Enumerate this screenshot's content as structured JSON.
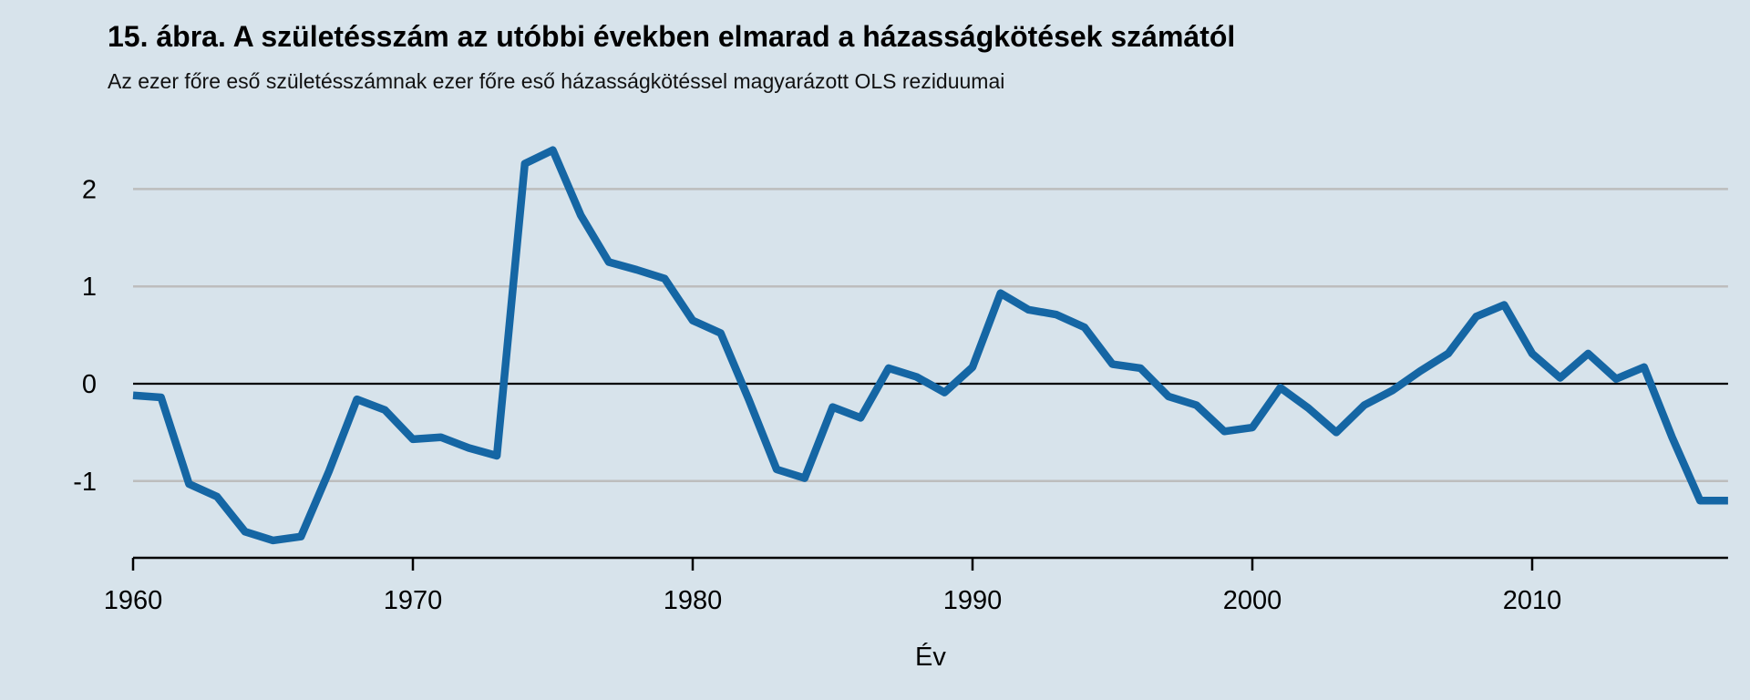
{
  "title": "15. ábra. A születésszám az utóbbi években elmarad a házasságkötések számától",
  "subtitle": "Az ezer főre eső születésszámnak ezer főre eső házasságkötéssel magyarázott OLS reziduumai",
  "chart_data": {
    "type": "line",
    "title": "15. ábra. A születésszám az utóbbi években elmarad a házasságkötések számától",
    "subtitle": "Az ezer főre eső születésszámnak ezer főre eső házasságkötéssel magyarázott OLS reziduumai",
    "xlabel": "Év",
    "ylabel": "",
    "legend_position": "none",
    "grid": "horizontal",
    "background_color": "#d7e3eb",
    "line_color": "#1566a4",
    "grid_color": "#bdbdbd",
    "zero_line_color": "#000000",
    "axis_color": "#000000",
    "xlim": [
      1960,
      2017
    ],
    "ylim": [
      -1.75,
      2.55
    ],
    "xticks": [
      1960,
      1970,
      1980,
      1990,
      2000,
      2010
    ],
    "yticks": [
      2,
      1,
      0,
      -1
    ],
    "x": [
      1960,
      1961,
      1962,
      1963,
      1964,
      1965,
      1966,
      1967,
      1968,
      1969,
      1970,
      1971,
      1972,
      1973,
      1974,
      1975,
      1976,
      1977,
      1978,
      1979,
      1980,
      1981,
      1982,
      1983,
      1984,
      1985,
      1986,
      1987,
      1988,
      1989,
      1990,
      1991,
      1992,
      1993,
      1994,
      1995,
      1996,
      1997,
      1998,
      1999,
      2000,
      2001,
      2002,
      2003,
      2004,
      2005,
      2006,
      2007,
      2008,
      2009,
      2010,
      2011,
      2012,
      2013,
      2014,
      2015,
      2016,
      2017
    ],
    "values": [
      -0.12,
      -0.14,
      -1.03,
      -1.16,
      -1.52,
      -1.61,
      -1.57,
      -0.9,
      -0.16,
      -0.27,
      -0.57,
      -0.55,
      -0.66,
      -0.74,
      2.26,
      2.4,
      1.73,
      1.25,
      1.17,
      1.08,
      0.65,
      0.52,
      -0.16,
      -0.88,
      -0.97,
      -0.24,
      -0.35,
      0.16,
      0.07,
      -0.09,
      0.17,
      0.93,
      0.76,
      0.71,
      0.58,
      0.2,
      0.16,
      -0.13,
      -0.22,
      -0.49,
      -0.45,
      -0.04,
      -0.25,
      -0.5,
      -0.22,
      -0.07,
      0.13,
      0.31,
      0.69,
      0.81,
      0.31,
      0.06,
      0.31,
      0.05,
      0.17,
      -0.55,
      -1.2,
      -1.2
    ]
  }
}
